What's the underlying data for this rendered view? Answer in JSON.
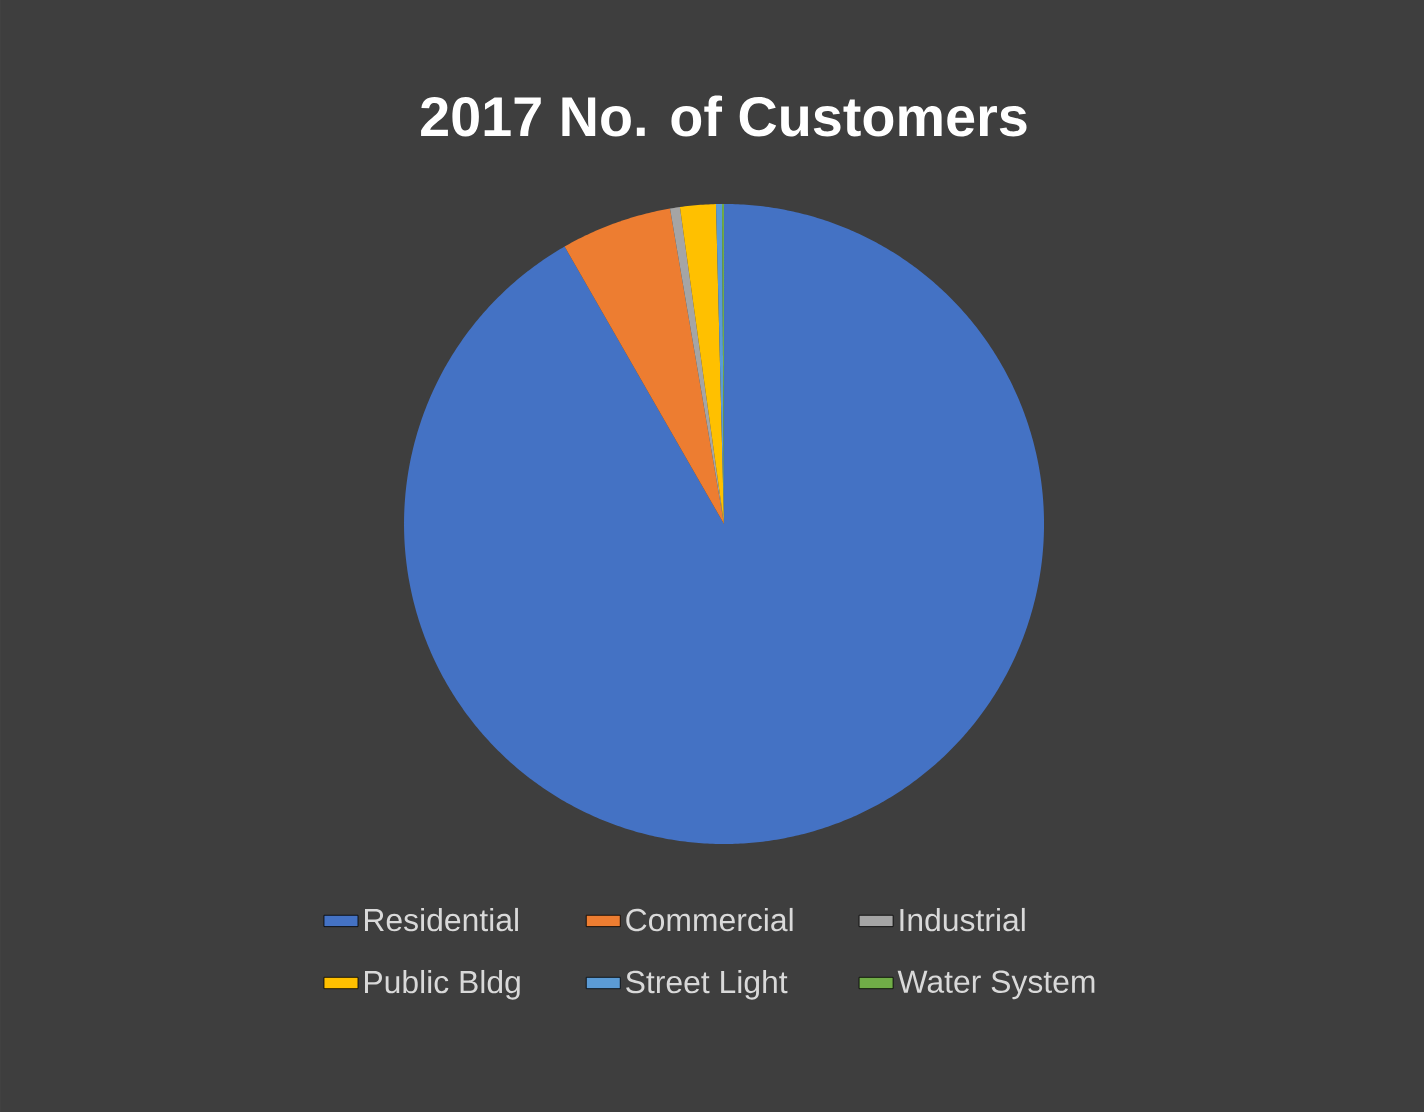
{
  "chart_data": {
    "type": "pie",
    "title": "2017 No. of Customers",
    "categories": [
      "Residential",
      "Commercial",
      "Industrial",
      "Public Bldg",
      "Street Light",
      "Water System"
    ],
    "values": [
      91.7,
      5.6,
      0.5,
      1.8,
      0.3,
      0.1
    ],
    "colors": [
      "#4472c4",
      "#ed7d31",
      "#a5a5a5",
      "#ffc000",
      "#5b9bd5",
      "#70ad47"
    ],
    "legend": "bottom"
  }
}
